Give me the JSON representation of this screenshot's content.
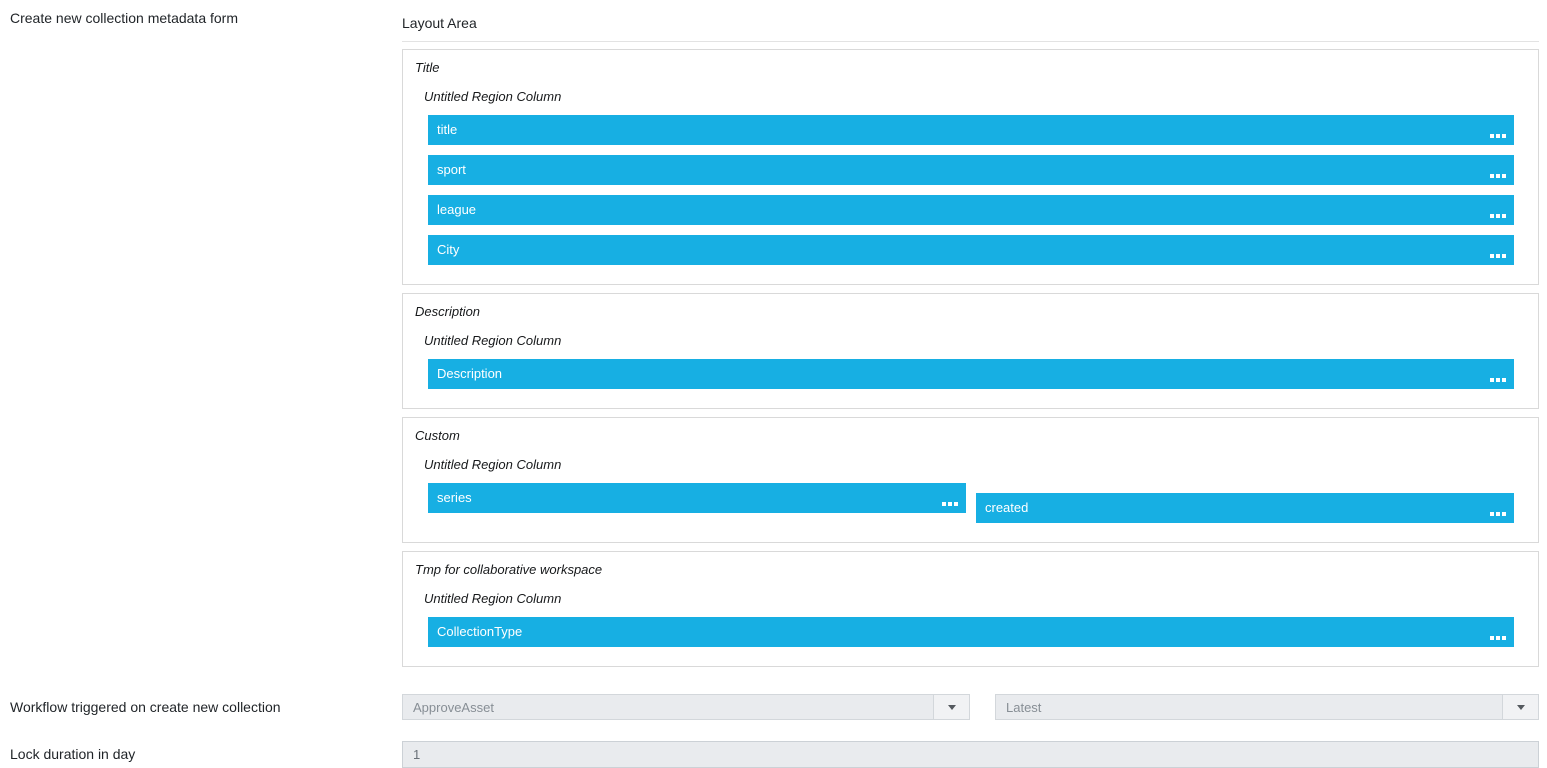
{
  "page": {
    "metadata_form_label": "Create new collection metadata form",
    "layout": {
      "title": "Layout Area",
      "sections": [
        {
          "title": "Title",
          "region": "Untitled Region Column",
          "fields": [
            "title",
            "sport",
            "league",
            "City"
          ]
        },
        {
          "title": "Description",
          "region": "Untitled Region Column",
          "fields": [
            "Description"
          ]
        },
        {
          "title": "Custom",
          "region": "Untitled Region Column",
          "fields": [
            "series",
            "created"
          ]
        },
        {
          "title": "Tmp for collaborative workspace",
          "region": "Untitled Region Column",
          "fields": [
            "CollectionType"
          ]
        }
      ]
    },
    "workflow": {
      "label": "Workflow triggered on create new collection",
      "workflow_select_value": "ApproveAsset",
      "version_select_value": "Latest"
    },
    "lock": {
      "label": "Lock duration in day",
      "value": "1"
    },
    "colors": {
      "accent_blue": "#17afe3",
      "field_background": "#e9ebee"
    }
  }
}
